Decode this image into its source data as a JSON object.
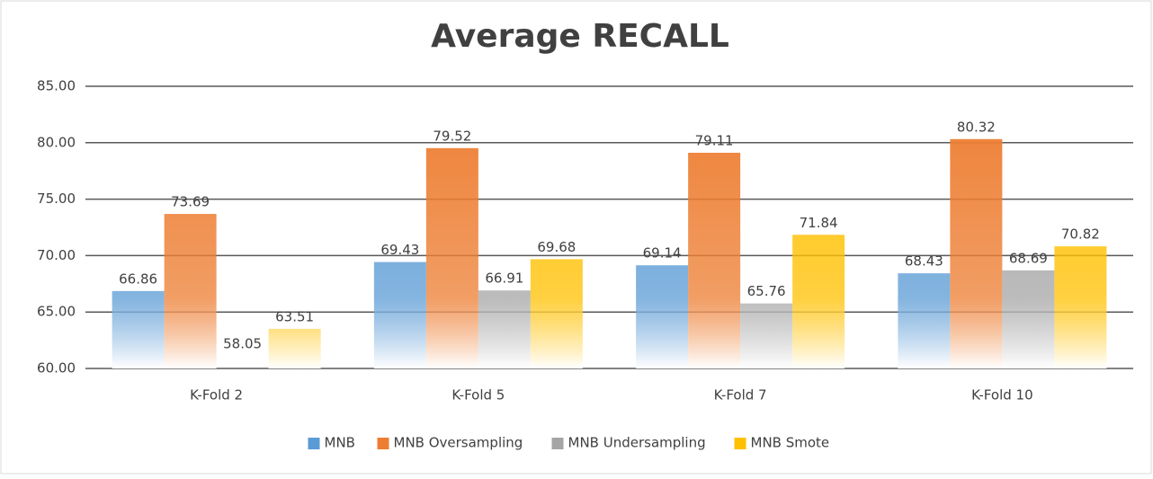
{
  "chart_data": {
    "type": "bar",
    "title": "Average RECALL",
    "categories": [
      "K-Fold 2",
      "K-Fold 5",
      "K-Fold 7",
      "K-Fold 10"
    ],
    "series": [
      {
        "name": "MNB",
        "color": "#5b9bd5",
        "values": [
          66.86,
          69.43,
          69.14,
          68.43
        ]
      },
      {
        "name": "MNB Oversampling",
        "color": "#ed7d31",
        "values": [
          73.69,
          79.52,
          79.11,
          80.32
        ]
      },
      {
        "name": "MNB Undersampling",
        "color": "#a5a5a5",
        "values": [
          58.05,
          66.91,
          65.76,
          68.69
        ]
      },
      {
        "name": "MNB Smote",
        "color": "#ffc000",
        "values": [
          63.51,
          69.68,
          71.84,
          70.82
        ]
      }
    ],
    "ylim": [
      60,
      85
    ],
    "yticks": [
      {
        "value": 60,
        "label": "60.00"
      },
      {
        "value": 65,
        "label": "65.00"
      },
      {
        "value": 70,
        "label": "70.00"
      },
      {
        "value": 75,
        "label": "75.00"
      },
      {
        "value": 80,
        "label": "80.00"
      },
      {
        "value": 85,
        "label": "85.00"
      }
    ],
    "grid": true,
    "legend": "bottom"
  }
}
